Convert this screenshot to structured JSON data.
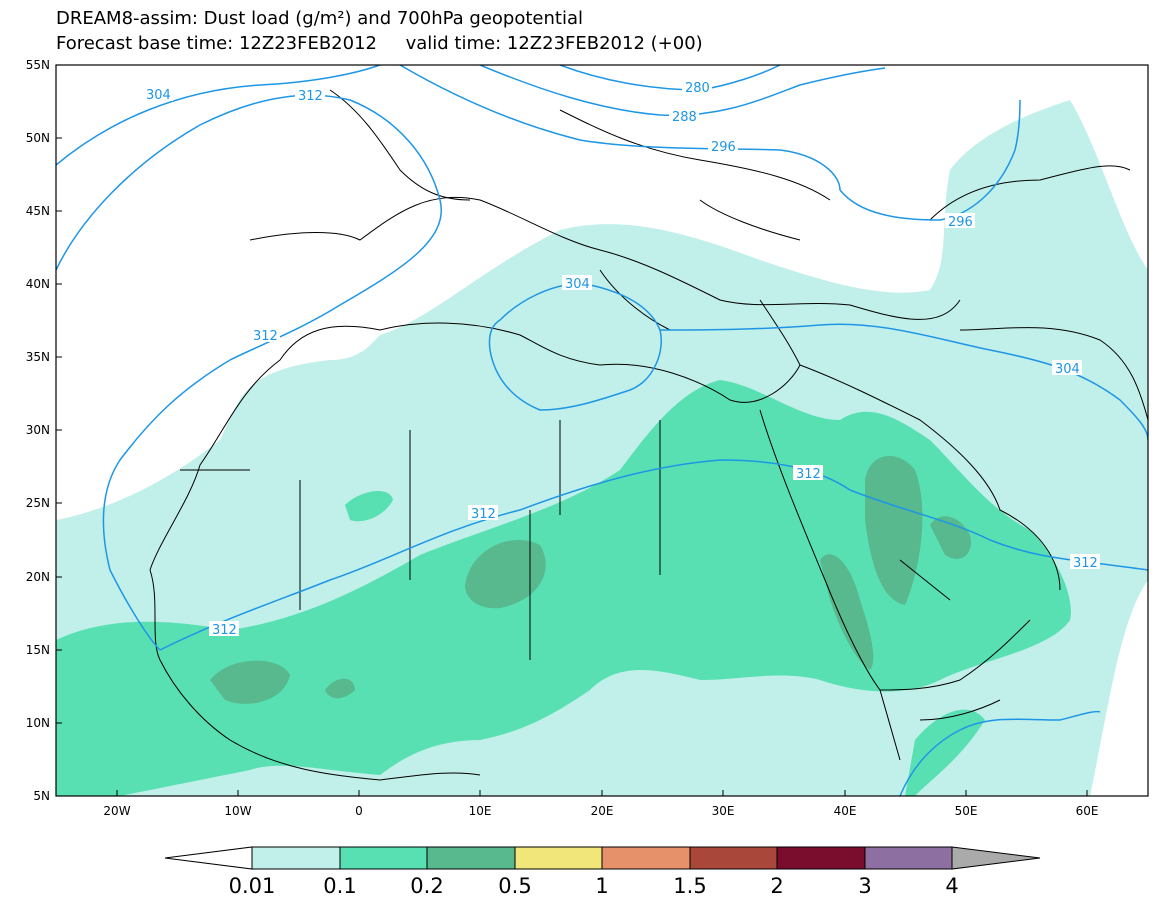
{
  "title": {
    "line1": "DREAM8-assim: Dust load (g/m²) and 700hPa geopotential",
    "line2": "Forecast base time: 12Z23FEB2012     valid time: 12Z23FEB2012 (+00)"
  },
  "map": {
    "lat_labels": [
      "55N",
      "50N",
      "45N",
      "40N",
      "35N",
      "30N",
      "25N",
      "20N",
      "15N",
      "10N",
      "5N"
    ],
    "lon_labels": [
      "20W",
      "10W",
      "0",
      "10E",
      "20E",
      "30E",
      "40E",
      "50E",
      "60E"
    ],
    "contour_labels": [
      "304",
      "312",
      "280",
      "288",
      "296",
      "296",
      "304",
      "312",
      "304",
      "312",
      "312",
      "312",
      "312"
    ],
    "contour_color": "#1e96e6"
  },
  "colorbar": {
    "labels": [
      "0.01",
      "0.1",
      "0.2",
      "0.5",
      "1",
      "1.5",
      "2",
      "3",
      "4"
    ],
    "colors": [
      "#c1efe9",
      "#58e0b3",
      "#58b88e",
      "#f0e67a",
      "#e6916a",
      "#a9473a",
      "#7a0c2e",
      "#8e6fa1",
      "#aaaaaa"
    ],
    "under_color": "#ffffff",
    "over_color": "#aaaaaa"
  }
}
